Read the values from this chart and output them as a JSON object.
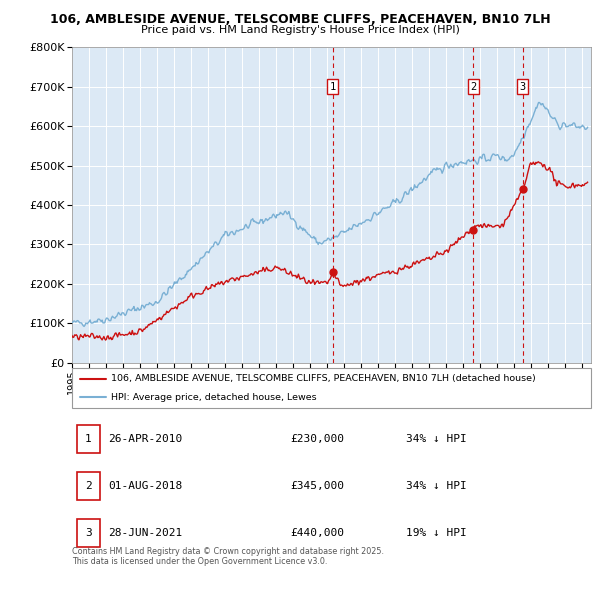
{
  "title_line1": "106, AMBLESIDE AVENUE, TELSCOMBE CLIFFS, PEACEHAVEN, BN10 7LH",
  "title_line2": "Price paid vs. HM Land Registry's House Price Index (HPI)",
  "bg_color": "#dce9f5",
  "red_color": "#cc1111",
  "blue_color": "#7ab0d4",
  "red_line_label": "106, AMBLESIDE AVENUE, TELSCOMBE CLIFFS, PEACEHAVEN, BN10 7LH (detached house)",
  "blue_line_label": "HPI: Average price, detached house, Lewes",
  "transactions": [
    {
      "num": 1,
      "date": "26-APR-2010",
      "price": "£230,000",
      "hpi_diff": "34% ↓ HPI",
      "year": 2010.32
    },
    {
      "num": 2,
      "date": "01-AUG-2018",
      "price": "£345,000",
      "hpi_diff": "34% ↓ HPI",
      "year": 2018.58
    },
    {
      "num": 3,
      "date": "28-JUN-2021",
      "price": "£440,000",
      "hpi_diff": "19% ↓ HPI",
      "year": 2021.49
    }
  ],
  "footer_line1": "Contains HM Land Registry data © Crown copyright and database right 2025.",
  "footer_line2": "This data is licensed under the Open Government Licence v3.0.",
  "ylim": [
    0,
    800000
  ],
  "xlim_start": 1995.0,
  "xlim_end": 2025.5,
  "yticks": [
    0,
    100000,
    200000,
    300000,
    400000,
    500000,
    600000,
    700000,
    800000
  ]
}
